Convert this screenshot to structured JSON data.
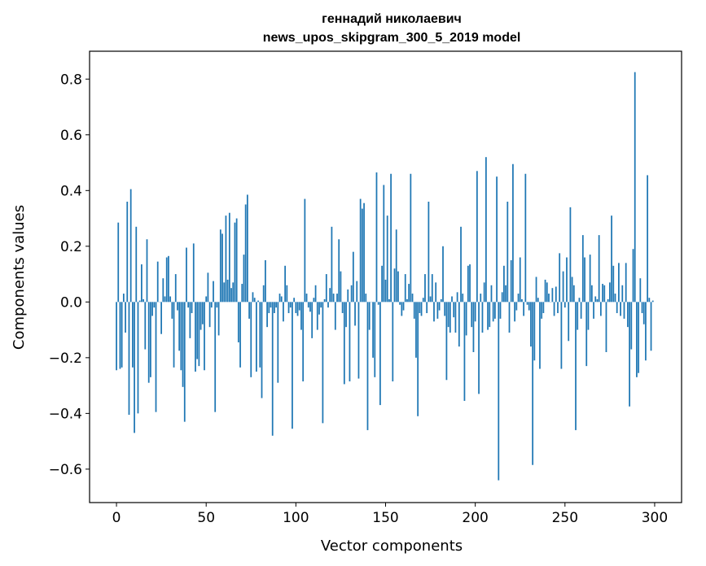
{
  "chart_data": {
    "type": "bar",
    "title_line1": "геннадий николаевич",
    "title_line2": "news_upos_skipgram_300_5_2019 model",
    "xlabel": "Vector components",
    "ylabel": "Components values",
    "xlim": [
      -15,
      315
    ],
    "ylim": [
      -0.72,
      0.9
    ],
    "xticks": [
      0,
      50,
      100,
      150,
      200,
      250,
      300
    ],
    "xtick_labels": [
      "0",
      "50",
      "100",
      "150",
      "200",
      "250",
      "300"
    ],
    "yticks": [
      -0.6,
      -0.4,
      -0.2,
      0.0,
      0.2,
      0.4,
      0.6,
      0.8
    ],
    "ytick_labels": [
      "−0.6",
      "−0.4",
      "−0.2",
      "0.0",
      "0.2",
      "0.4",
      "0.6",
      "0.8"
    ],
    "bar_color": "#1f77b4",
    "values": [
      -0.245,
      0.285,
      -0.24,
      -0.235,
      0.03,
      -0.11,
      0.36,
      -0.405,
      0.405,
      -0.235,
      -0.47,
      0.27,
      -0.4,
      0.005,
      0.135,
      0.01,
      -0.17,
      0.225,
      -0.29,
      -0.27,
      -0.05,
      -0.02,
      -0.395,
      0.145,
      0.0,
      -0.115,
      0.085,
      0.02,
      0.16,
      0.165,
      0.02,
      -0.06,
      -0.235,
      0.1,
      -0.03,
      -0.175,
      -0.245,
      -0.305,
      -0.43,
      0.195,
      -0.02,
      -0.13,
      -0.04,
      0.21,
      -0.25,
      -0.205,
      -0.23,
      -0.1,
      -0.08,
      -0.245,
      0.02,
      0.105,
      -0.09,
      -0.02,
      0.075,
      -0.395,
      -0.02,
      -0.12,
      0.26,
      0.245,
      0.07,
      0.31,
      0.08,
      0.32,
      0.05,
      0.07,
      0.285,
      0.3,
      -0.145,
      -0.235,
      0.065,
      0.17,
      0.35,
      0.385,
      -0.06,
      -0.27,
      0.035,
      0.015,
      -0.25,
      0.005,
      -0.235,
      -0.345,
      0.06,
      0.15,
      -0.09,
      -0.04,
      -0.02,
      -0.48,
      -0.04,
      -0.02,
      -0.29,
      0.03,
      0.02,
      -0.07,
      0.13,
      0.06,
      -0.04,
      -0.02,
      -0.455,
      0.015,
      -0.04,
      -0.05,
      -0.03,
      -0.1,
      -0.285,
      0.37,
      0.03,
      -0.02,
      -0.035,
      -0.13,
      0.015,
      0.06,
      -0.1,
      -0.045,
      -0.02,
      -0.435,
      0.01,
      0.1,
      -0.02,
      0.05,
      0.27,
      0.03,
      -0.1,
      0.03,
      0.225,
      0.11,
      -0.04,
      -0.295,
      -0.09,
      0.045,
      -0.285,
      0.06,
      0.18,
      -0.085,
      0.075,
      -0.275,
      0.37,
      0.335,
      0.355,
      0.03,
      -0.46,
      -0.1,
      0.0,
      -0.2,
      -0.27,
      0.465,
      -0.01,
      -0.37,
      0.13,
      0.42,
      0.08,
      0.31,
      0.01,
      0.46,
      -0.285,
      0.12,
      0.26,
      0.11,
      -0.01,
      -0.05,
      -0.03,
      0.1,
      0.01,
      0.065,
      0.46,
      0.03,
      -0.06,
      -0.2,
      -0.41,
      -0.04,
      -0.05,
      0.015,
      0.1,
      -0.04,
      0.36,
      0.02,
      0.1,
      -0.07,
      0.07,
      -0.06,
      -0.03,
      0.01,
      0.2,
      -0.05,
      -0.28,
      -0.09,
      -0.11,
      0.02,
      -0.055,
      -0.11,
      0.035,
      -0.16,
      0.27,
      0.03,
      -0.355,
      -0.12,
      0.13,
      0.135,
      -0.09,
      -0.18,
      -0.07,
      0.47,
      -0.33,
      0.03,
      -0.11,
      0.07,
      0.52,
      -0.1,
      -0.09,
      0.06,
      -0.07,
      -0.06,
      0.45,
      -0.64,
      -0.06,
      0.035,
      0.13,
      0.06,
      0.36,
      -0.11,
      0.15,
      0.495,
      -0.07,
      -0.03,
      0.03,
      0.16,
      0.01,
      -0.05,
      0.46,
      -0.01,
      -0.03,
      -0.16,
      -0.585,
      -0.21,
      0.09,
      0.015,
      -0.24,
      -0.06,
      -0.04,
      0.08,
      0.07,
      0.03,
      0.0,
      0.05,
      -0.05,
      0.055,
      -0.04,
      0.175,
      -0.24,
      0.11,
      -0.02,
      0.16,
      -0.14,
      0.34,
      0.09,
      0.06,
      -0.46,
      -0.1,
      0.015,
      -0.06,
      0.24,
      0.16,
      -0.23,
      -0.1,
      0.17,
      0.06,
      -0.06,
      0.02,
      0.01,
      0.24,
      -0.05,
      0.065,
      0.06,
      -0.18,
      0.01,
      0.07,
      0.31,
      0.13,
      0.03,
      -0.04,
      0.14,
      -0.05,
      0.06,
      -0.06,
      0.14,
      -0.09,
      -0.375,
      -0.17,
      0.19,
      0.825,
      -0.27,
      -0.255,
      0.085,
      -0.04,
      -0.08,
      -0.21,
      0.455,
      0.015,
      -0.175,
      0.005
    ]
  }
}
